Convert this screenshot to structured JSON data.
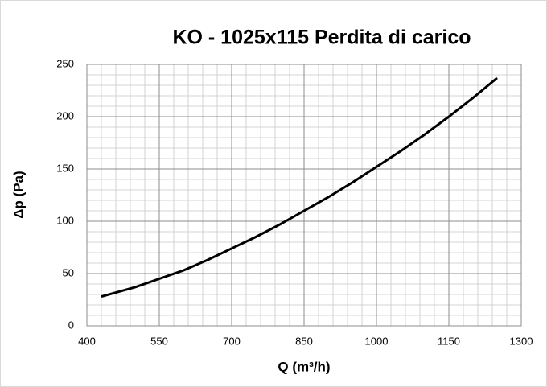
{
  "chart_data": {
    "type": "line",
    "title": "KO - 1025x115 Perdita di carico",
    "xlabel": "Q (m³/h)",
    "ylabel": "Δp (Pa)",
    "x": [
      430,
      500,
      550,
      600,
      650,
      700,
      750,
      800,
      850,
      900,
      950,
      1000,
      1050,
      1100,
      1150,
      1200,
      1250
    ],
    "series": [
      {
        "name": "Δp",
        "color": "#000000",
        "values": [
          28,
          37,
          45,
          53,
          63,
          74,
          85,
          97,
          110,
          123,
          137,
          152,
          167,
          183,
          200,
          218,
          237
        ]
      }
    ],
    "xlim": [
      400,
      1300
    ],
    "xticks": [
      400,
      550,
      700,
      850,
      1000,
      1150,
      1300
    ],
    "ylim": [
      0,
      250
    ],
    "yticks": [
      0,
      50,
      100,
      150,
      200,
      250
    ],
    "minor_grid": {
      "x": 30,
      "y": 10
    },
    "grid": true,
    "legend": false
  }
}
